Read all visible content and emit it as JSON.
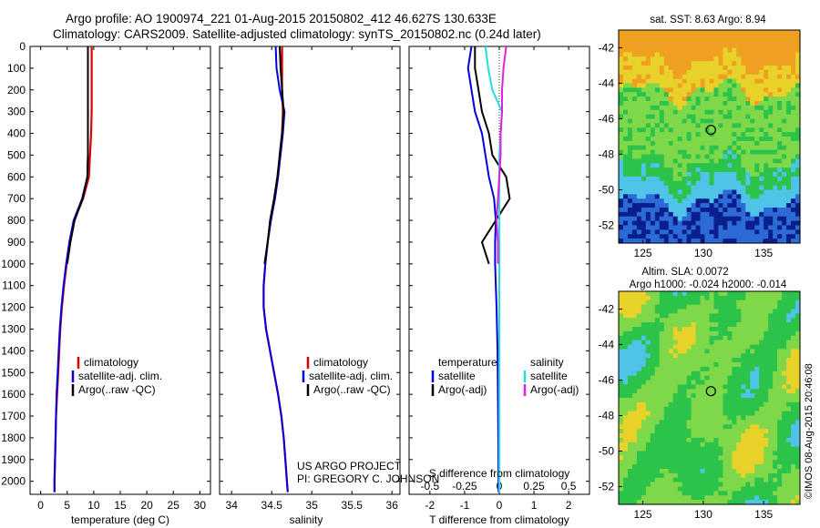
{
  "header": {
    "title_line1": "Argo profile: AO 1900974_221 01-Aug-2015 20150802_412 46.627S 130.633E",
    "title_line2": "Climatology: CARS2009. Satellite-adjusted climatology: synTS_20150802.nc (0.24d later)"
  },
  "credits": {
    "project_line1": "US ARGO PROJECT",
    "project_line2": "PI: GREGORY C. JOHNSON",
    "timestamp": "©IMOS 08-Aug-2015 20:46:08"
  },
  "colors": {
    "climatology": "#dd0000",
    "satellite": "#0000dd",
    "argo": "#000000",
    "sal_satellite": "#22dddd",
    "sal_argo": "#dd22dd",
    "map_dark_blue": "#0a1f8c",
    "map_blue": "#2c6bd6",
    "map_cyan": "#4fc3e8",
    "map_green": "#2cc34a",
    "map_light_green": "#7fd84a",
    "map_yellow": "#e8d22a",
    "map_orange": "#f0a020"
  },
  "chart_data": [
    {
      "type": "line",
      "name": "temperature-profile",
      "xlabel": "temperature (deg C)",
      "ylabel": "",
      "xlim": [
        -2,
        32
      ],
      "ylim": [
        2060,
        0
      ],
      "xticks": [
        0,
        5,
        10,
        15,
        20,
        25,
        30
      ],
      "yticks": [
        0,
        100,
        200,
        300,
        400,
        500,
        600,
        700,
        800,
        900,
        1000,
        1100,
        1200,
        1300,
        1400,
        1500,
        1600,
        1700,
        1800,
        1900,
        2000
      ],
      "legend": [
        "climatology",
        "satellite-adj. clim.",
        "Argo(..raw -QC)"
      ],
      "legend_position": "lower-right",
      "series": [
        {
          "name": "climatology",
          "depth": [
            0,
            100,
            200,
            300,
            400,
            500,
            600,
            700,
            800,
            900,
            1000,
            1100,
            1200,
            1300,
            1400,
            1500,
            1600,
            1700,
            1800,
            1900,
            2000,
            2050
          ],
          "values": [
            9.6,
            9.6,
            9.6,
            9.6,
            9.5,
            9.3,
            9.1,
            8.0,
            6.3,
            5.5,
            4.9,
            4.4,
            4.0,
            3.7,
            3.5,
            3.3,
            3.1,
            2.9,
            2.8,
            2.7,
            2.6,
            2.6
          ]
        },
        {
          "name": "satellite-adj. clim.",
          "depth": [
            0,
            100,
            200,
            300,
            400,
            500,
            600,
            700,
            800,
            900,
            1000,
            1100,
            1200,
            1300,
            1400,
            1500,
            1600,
            1700,
            1800,
            1900,
            2000,
            2050
          ],
          "values": [
            8.9,
            8.9,
            8.9,
            8.9,
            8.9,
            8.9,
            8.8,
            7.8,
            6.2,
            5.4,
            4.8,
            4.3,
            3.9,
            3.6,
            3.4,
            3.2,
            3.0,
            2.9,
            2.8,
            2.7,
            2.6,
            2.6
          ]
        },
        {
          "name": "Argo(..raw -QC)",
          "depth": [
            0,
            100,
            200,
            300,
            400,
            500,
            600,
            700,
            800,
            900,
            1000
          ],
          "values": [
            8.9,
            8.9,
            8.9,
            8.9,
            8.9,
            8.9,
            8.8,
            7.9,
            6.4,
            5.6,
            5.0
          ]
        }
      ]
    },
    {
      "type": "line",
      "name": "salinity-profile",
      "xlabel": "salinity",
      "ylabel": "",
      "xlim": [
        33.85,
        36.1
      ],
      "ylim": [
        2060,
        0
      ],
      "xticks": [
        34,
        34.5,
        35,
        35.5,
        36
      ],
      "legend": [
        "climatology",
        "satellite-adj. clim.",
        "Argo(..raw -QC)"
      ],
      "legend_position": "lower-right",
      "series": [
        {
          "name": "climatology",
          "depth": [
            0,
            100,
            200,
            300,
            400,
            500,
            600,
            700,
            800,
            900,
            1000,
            1100,
            1200,
            1300,
            1400,
            1500,
            1600,
            1700,
            1800,
            1900,
            2000,
            2050
          ],
          "values": [
            34.63,
            34.63,
            34.63,
            34.64,
            34.63,
            34.6,
            34.58,
            34.54,
            34.49,
            34.45,
            34.42,
            34.4,
            34.4,
            34.43,
            34.48,
            34.53,
            34.58,
            34.62,
            34.65,
            34.67,
            34.69,
            34.7
          ]
        },
        {
          "name": "satellite-adj. clim.",
          "depth": [
            0,
            100,
            200,
            300,
            400,
            500,
            600,
            700,
            800,
            900,
            1000,
            1100,
            1200,
            1300,
            1400,
            1500,
            1600,
            1700,
            1800,
            1900,
            2000,
            2050
          ],
          "values": [
            34.55,
            34.56,
            34.6,
            34.66,
            34.64,
            34.61,
            34.58,
            34.54,
            34.49,
            34.45,
            34.42,
            34.4,
            34.4,
            34.43,
            34.48,
            34.53,
            34.58,
            34.62,
            34.65,
            34.67,
            34.69,
            34.7
          ]
        },
        {
          "name": "Argo(..raw -QC)",
          "depth": [
            0,
            100,
            200,
            300,
            400,
            500,
            600,
            700,
            800,
            900,
            1000
          ],
          "values": [
            34.6,
            34.61,
            34.63,
            34.65,
            34.63,
            34.6,
            34.57,
            34.53,
            34.48,
            34.45,
            34.41
          ]
        }
      ]
    },
    {
      "type": "line",
      "name": "difference-profile",
      "xlabel": "T difference from climatology",
      "top_axis_label": "S difference from climatology",
      "xlim": [
        -2.6,
        2.6
      ],
      "ylim": [
        2060,
        0
      ],
      "xticks": [
        -2,
        -1,
        0,
        1,
        2
      ],
      "xticklabels": [
        "-2",
        "-1",
        "0",
        "1",
        "2"
      ],
      "s_xticks": [
        -0.5,
        -0.25,
        0,
        0.25,
        0.5
      ],
      "s_xticklabels": [
        "-0.5",
        "-0.25",
        "0",
        "0.25",
        "0.5"
      ],
      "legend_temperature": [
        "temperature",
        "satellite",
        "Argo(-adj)"
      ],
      "legend_salinity": [
        "salinity",
        "satellite",
        "Argo(-adj)"
      ],
      "legend_position": "lower-right",
      "series": [
        {
          "name": "temperature satellite",
          "depth": [
            0,
            100,
            200,
            300,
            400,
            500,
            600,
            700,
            800,
            900,
            1000,
            1100,
            1200,
            1400,
            1600,
            1800,
            2000,
            2050
          ],
          "values": [
            -0.8,
            -0.9,
            -0.8,
            -0.7,
            -0.5,
            -0.4,
            -0.3,
            -0.15,
            -0.1,
            -0.12,
            -0.12,
            -0.1,
            -0.08,
            -0.05,
            -0.04,
            -0.03,
            -0.02,
            -0.02
          ]
        },
        {
          "name": "temperature Argo(-adj)",
          "depth": [
            0,
            100,
            200,
            300,
            400,
            500,
            600,
            700,
            800,
            900,
            1000
          ],
          "values": [
            -0.7,
            -0.7,
            -0.6,
            -0.5,
            -0.3,
            -0.2,
            0.2,
            0.3,
            -0.1,
            -0.5,
            -0.3
          ]
        },
        {
          "name": "salinity satellite",
          "depth": [
            0,
            100,
            200,
            300,
            400,
            500,
            600,
            700,
            800,
            900,
            1000,
            1100,
            1200,
            1400,
            1600,
            1800,
            2000,
            2050
          ],
          "values": [
            -0.1,
            -0.08,
            -0.05,
            0.02,
            0.01,
            0.0,
            0.0,
            0.0,
            0.0,
            0.0,
            0.0,
            0.0,
            0.0,
            0.0,
            0.0,
            0.0,
            0.0,
            0.0
          ]
        },
        {
          "name": "salinity Argo(-adj)",
          "depth": [
            0,
            100,
            200,
            300,
            400,
            500,
            600,
            700,
            800,
            900,
            1000
          ],
          "values": [
            0.05,
            0.03,
            0.02,
            0.02,
            0.01,
            0.01,
            0.0,
            -0.01,
            -0.02,
            -0.01,
            -0.01
          ]
        }
      ]
    },
    {
      "type": "heatmap",
      "name": "sst-map",
      "title": "sat. SST: 8.63 Argo: 8.94",
      "xlim": [
        123,
        138
      ],
      "ylim": [
        -53,
        -41
      ],
      "xticks": [
        125,
        130,
        135
      ],
      "yticks": [
        -42,
        -44,
        -46,
        -48,
        -50,
        -52
      ],
      "marker": {
        "lon": 130.633,
        "lat": -46.627
      }
    },
    {
      "type": "heatmap",
      "name": "sla-map",
      "title_line1": "Altim. SLA: 0.0072",
      "title_line2": "Argo h1000: -0.024 h2000: -0.014",
      "xlim": [
        123,
        138
      ],
      "ylim": [
        -53,
        -41
      ],
      "xticks": [
        125,
        130,
        135
      ],
      "yticks": [
        -42,
        -44,
        -46,
        -48,
        -50,
        -52
      ],
      "marker": {
        "lon": 130.633,
        "lat": -46.627
      }
    }
  ]
}
